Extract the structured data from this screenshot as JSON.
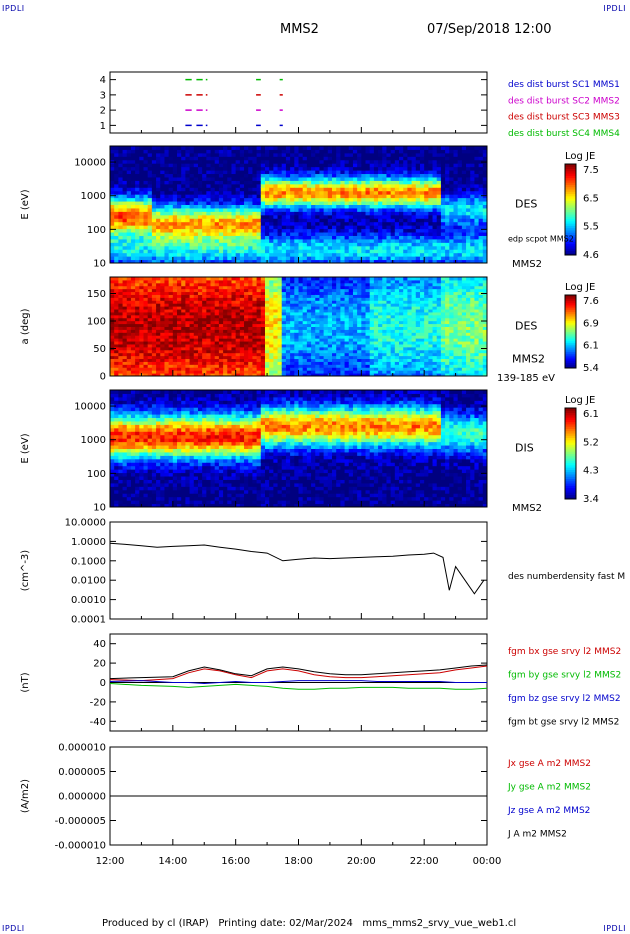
{
  "header": {
    "corner_left_top": "IPDLI",
    "corner_right_top": "IPDLI",
    "corner_left_bottom": "IPDLI",
    "corner_right_bottom": "IPDLI",
    "title": "MMS2",
    "datetime": "07/Sep/2018 12:00"
  },
  "footer": {
    "text": "Produced by cl (IRAP)   Printing date: 02/Mar/2024   mms_mms2_srvy_vue_web1.cl"
  },
  "colors": {
    "blue": "#0000cc",
    "magenta": "#cc00cc",
    "red": "#cc0000",
    "green": "#00bb00",
    "black": "#000000"
  },
  "chart_data": [
    {
      "type": "scatter",
      "panel": "burst-intervals",
      "yticks": [
        "1",
        "2",
        "3",
        "4"
      ],
      "ylim": [
        0.5,
        4.5
      ],
      "legend": [
        {
          "label": "des dist burst SC1 MMS1",
          "color": "#0000cc",
          "level": 1
        },
        {
          "label": "des dist burst SC2 MMS2",
          "color": "#cc00cc",
          "level": 2
        },
        {
          "label": "des dist burst SC3 MMS3",
          "color": "#cc0000",
          "level": 3
        },
        {
          "label": "des dist burst SC4 MMS4",
          "color": "#00bb00",
          "level": 4
        }
      ],
      "intervals_hours": [
        [
          14.4,
          14.6
        ],
        [
          14.75,
          14.95
        ],
        [
          15.05,
          15.1
        ],
        [
          16.65,
          16.8
        ],
        [
          17.4,
          17.5
        ]
      ]
    },
    {
      "type": "heatmap",
      "panel": "des-energy",
      "ylabel": "E (eV)",
      "yscale": "log",
      "yticks": [
        "10",
        "100",
        "1000",
        "10000"
      ],
      "ylim": [
        10,
        30000
      ],
      "side_label": "DES",
      "side_sub": "edp scpot MMS2",
      "side_bottom": "MMS2",
      "colorbar": {
        "title": "Log JE",
        "ticks": [
          "7.5",
          "6.5",
          "5.5",
          "4.6"
        ],
        "range": [
          4.6,
          7.6
        ]
      }
    },
    {
      "type": "heatmap",
      "panel": "des-pitch-angle",
      "ylabel": "a (deg)",
      "yticks": [
        "0",
        "50",
        "100",
        "150"
      ],
      "ylim": [
        0,
        180
      ],
      "side_label": "DES",
      "side_sub": "MMS2",
      "side_bottom": "139-185 eV",
      "colorbar": {
        "title": "Log JE",
        "ticks": [
          "7.6",
          "6.9",
          "6.1",
          "5.4"
        ],
        "range": [
          5.4,
          7.6
        ]
      }
    },
    {
      "type": "heatmap",
      "panel": "dis-energy",
      "ylabel": "E (eV)",
      "yscale": "log",
      "yticks": [
        "10",
        "100",
        "1000",
        "10000"
      ],
      "ylim": [
        10,
        30000
      ],
      "side_label": "DIS",
      "side_bottom": "MMS2",
      "colorbar": {
        "title": "Log JE",
        "ticks": [
          "6.1",
          "5.2",
          "4.3",
          "3.4"
        ],
        "range": [
          3.4,
          6.1
        ]
      }
    },
    {
      "type": "line",
      "panel": "density",
      "ylabel": "(cm^-3)",
      "yscale": "log",
      "yticks": [
        "10.0000",
        "1.0000",
        "0.1000",
        "0.0100",
        "0.0010",
        "0.0001"
      ],
      "ylim": [
        0.0001,
        10
      ],
      "series": [
        {
          "name": "des numberdensity fast M",
          "color": "#000000",
          "x": [
            12.0,
            12.5,
            13.0,
            13.5,
            14.0,
            14.5,
            15.0,
            15.5,
            16.0,
            16.5,
            17.0,
            17.5,
            18.0,
            18.5,
            19.0,
            19.5,
            20.0,
            20.5,
            21.0,
            21.5,
            22.0,
            22.3,
            22.6,
            22.8,
            23.0,
            23.3,
            23.6,
            23.9
          ],
          "values": [
            0.8,
            0.7,
            0.6,
            0.5,
            0.55,
            0.6,
            0.65,
            0.5,
            0.4,
            0.3,
            0.25,
            0.1,
            0.12,
            0.14,
            0.13,
            0.14,
            0.15,
            0.16,
            0.17,
            0.2,
            0.22,
            0.25,
            0.15,
            0.003,
            0.05,
            0.01,
            0.002,
            0.01
          ]
        }
      ]
    },
    {
      "type": "line",
      "panel": "magnetic-field",
      "ylabel": "(nT)",
      "yticks": [
        "40",
        "20",
        "0",
        "-20",
        "-40"
      ],
      "ylim": [
        -50,
        50
      ],
      "series": [
        {
          "name": "fgm bx gse srvy l2 MMS2",
          "color": "#cc0000",
          "x": [
            12,
            13,
            14,
            14.5,
            15,
            15.5,
            16,
            16.5,
            17,
            17.5,
            18,
            18.5,
            19,
            19.5,
            20,
            20.5,
            21,
            21.5,
            22,
            22.5,
            23,
            23.5,
            24
          ],
          "values": [
            3,
            2,
            4,
            10,
            14,
            12,
            8,
            5,
            12,
            14,
            12,
            8,
            6,
            5,
            5,
            6,
            7,
            8,
            9,
            10,
            13,
            15,
            17
          ]
        },
        {
          "name": "fgm by gse srvy l2 MMS2",
          "color": "#00bb00",
          "x": [
            12,
            13,
            14,
            14.5,
            15,
            15.5,
            16,
            16.5,
            17,
            17.5,
            18,
            18.5,
            19,
            19.5,
            20,
            20.5,
            21,
            21.5,
            22,
            22.5,
            23,
            23.5,
            24
          ],
          "values": [
            -1,
            -3,
            -4,
            -5,
            -4,
            -3,
            -2,
            -3,
            -4,
            -6,
            -7,
            -7,
            -6,
            -6,
            -5,
            -5,
            -5,
            -6,
            -6,
            -6,
            -7,
            -7,
            -6
          ]
        },
        {
          "name": "fgm bz gse srvy l2 MMS2",
          "color": "#0000cc",
          "x": [
            12,
            13,
            14,
            14.5,
            15,
            15.5,
            16,
            16.5,
            17,
            17.5,
            18,
            18.5,
            19,
            19.5,
            20,
            20.5,
            21,
            21.5,
            22,
            22.5,
            23,
            23.5,
            24
          ],
          "values": [
            1,
            2,
            0,
            0,
            -1,
            0,
            1,
            0,
            0,
            1,
            2,
            2,
            2,
            2,
            2,
            1,
            1,
            1,
            1,
            1,
            0,
            0,
            0
          ]
        },
        {
          "name": "fgm bt gse srvy l2 MMS2",
          "color": "#000000",
          "x": [
            12,
            13,
            14,
            14.5,
            15,
            15.5,
            16,
            16.5,
            17,
            17.5,
            18,
            18.5,
            19,
            19.5,
            20,
            20.5,
            21,
            21.5,
            22,
            22.5,
            23,
            23.5,
            24
          ],
          "values": [
            4,
            5,
            6,
            12,
            16,
            13,
            9,
            7,
            14,
            16,
            14,
            11,
            9,
            8,
            8,
            9,
            10,
            11,
            12,
            13,
            15,
            17,
            18
          ]
        }
      ]
    },
    {
      "type": "line",
      "panel": "current-density",
      "ylabel": "(A/m2)",
      "yticks": [
        "0.000010",
        "0.000005",
        "0.000000",
        "-0.000005",
        "-0.000010"
      ],
      "ylim": [
        -1e-05,
        1e-05
      ],
      "xticks": [
        "12:00",
        "14:00",
        "16:00",
        "18:00",
        "20:00",
        "22:00",
        "00:00"
      ],
      "series": [
        {
          "name": "Jx gse A m2 MMS2",
          "color": "#cc0000",
          "x": [
            12,
            24
          ],
          "values": [
            0,
            0
          ]
        },
        {
          "name": "Jy gse A m2 MMS2",
          "color": "#00bb00",
          "x": [
            12,
            24
          ],
          "values": [
            0,
            0
          ]
        },
        {
          "name": "Jz gse A m2 MMS2",
          "color": "#0000cc",
          "x": [
            12,
            24
          ],
          "values": [
            0,
            0
          ]
        },
        {
          "name": "J A m2 MMS2",
          "color": "#000000",
          "x": [
            12,
            24
          ],
          "values": [
            0,
            0
          ]
        }
      ]
    }
  ]
}
